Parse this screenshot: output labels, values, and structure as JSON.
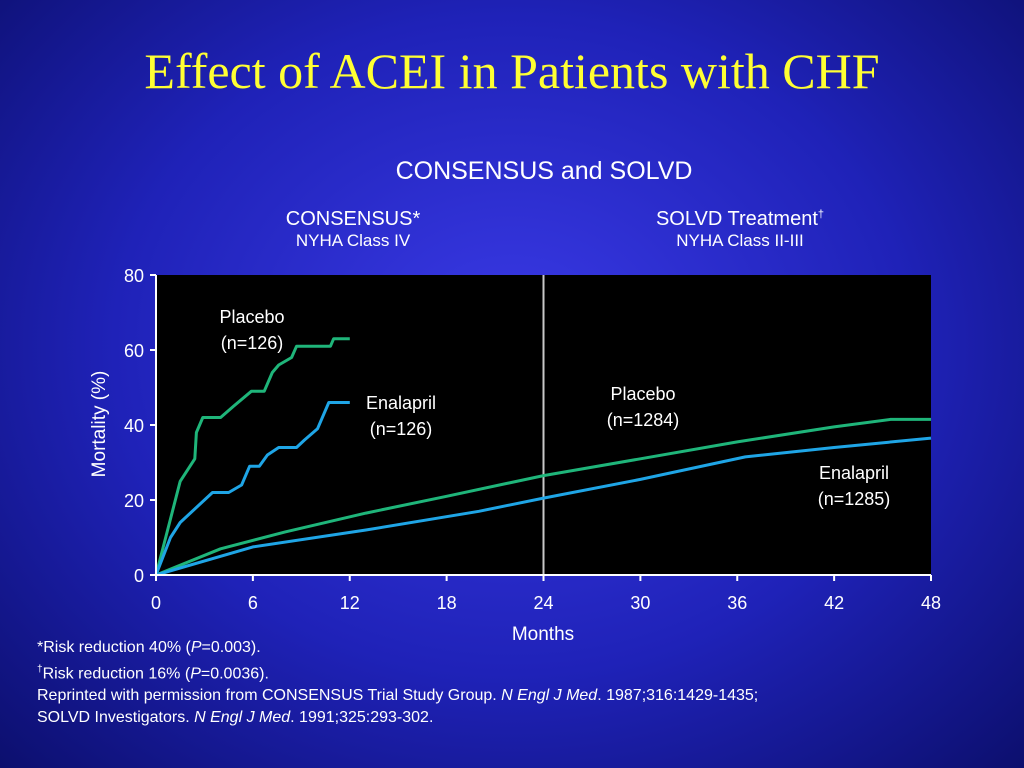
{
  "slide": {
    "title": "Effect of ACEI in Patients with CHF",
    "subtitle": "CONSENSUS and SOLVD"
  },
  "panels": {
    "left": {
      "title": "CONSENSUS*",
      "subtitle": "NYHA Class IV"
    },
    "right": {
      "title": "SOLVD Treatment",
      "title_mark": "†",
      "subtitle": "NYHA Class II-III"
    }
  },
  "footnotes": {
    "line1_text": "*Risk reduction 40% (",
    "line1_p": "P",
    "line1_rest": "=0.003).",
    "line2_mark": "†",
    "line2_text": "Risk reduction 16% (",
    "line2_p": "P",
    "line2_rest": "=0.0036).",
    "line3_text": "Reprinted with permission from CONSENSUS Trial Study Group. ",
    "line3_journal": "N Engl J Med",
    "line3_rest": ". 1987;316:1429-1435;",
    "line4_text": "SOLVD Investigators. ",
    "line4_journal": "N Engl J Med",
    "line4_rest": ". 1991;325:293-302."
  },
  "chart_data": {
    "type": "line",
    "xlabel": "Months",
    "ylabel": "Mortality (%)",
    "xlim": [
      0,
      48
    ],
    "ylim": [
      0,
      80
    ],
    "xticks": [
      0,
      6,
      12,
      18,
      24,
      30,
      36,
      42,
      48
    ],
    "yticks": [
      0,
      20,
      40,
      60,
      80
    ],
    "divider_x": 24,
    "series": [
      {
        "name": "Placebo (n=126)",
        "study": "CONSENSUS",
        "color": "#1fb57a",
        "x": [
          0,
          1.5,
          2.4,
          2.5,
          2.9,
          4.0,
          4.8,
          5.9,
          6.7,
          7.2,
          7.6,
          8.4,
          8.7,
          10.8,
          11.0,
          12.0
        ],
        "y": [
          0,
          25,
          31,
          38,
          42,
          42,
          45,
          49,
          49,
          54,
          56,
          58,
          61,
          61,
          63,
          63
        ]
      },
      {
        "name": "Enalapril (n=126)",
        "study": "CONSENSUS",
        "color": "#1fa5e6",
        "x": [
          0,
          0.9,
          1.5,
          3.5,
          4.5,
          5.3,
          5.8,
          6.4,
          6.9,
          7.6,
          8.7,
          9.2,
          10.0,
          10.7,
          12.0
        ],
        "y": [
          0,
          10,
          14,
          22,
          22,
          24,
          29,
          29,
          32,
          34,
          34,
          36,
          39,
          46,
          46
        ]
      },
      {
        "name": "Placebo (n=1284)",
        "study": "SOLVD",
        "color": "#1fb57a",
        "x": [
          0,
          4,
          8,
          13,
          18,
          24,
          30,
          36,
          42,
          45.5,
          48
        ],
        "y": [
          0,
          7,
          11.5,
          16.5,
          21,
          26.5,
          31,
          35.5,
          39.5,
          41.5,
          41.5
        ]
      },
      {
        "name": "Enalapril (n=1285)",
        "study": "SOLVD",
        "color": "#1fa5e6",
        "x": [
          0,
          6,
          13,
          20,
          24,
          30,
          36.5,
          42,
          48
        ],
        "y": [
          0,
          7.5,
          12,
          17,
          20.5,
          25.5,
          31.5,
          34,
          36.5
        ]
      }
    ],
    "annotations": [
      {
        "id": "consensus-placebo",
        "line1": "Placebo",
        "line2": "(n=126)"
      },
      {
        "id": "consensus-enalapril",
        "line1": "Enalapril",
        "line2": "(n=126)"
      },
      {
        "id": "solvd-placebo",
        "line1": "Placebo",
        "line2": "(n=1284)"
      },
      {
        "id": "solvd-enalapril",
        "line1": "Enalapril",
        "line2": "(n=1285)"
      }
    ]
  }
}
